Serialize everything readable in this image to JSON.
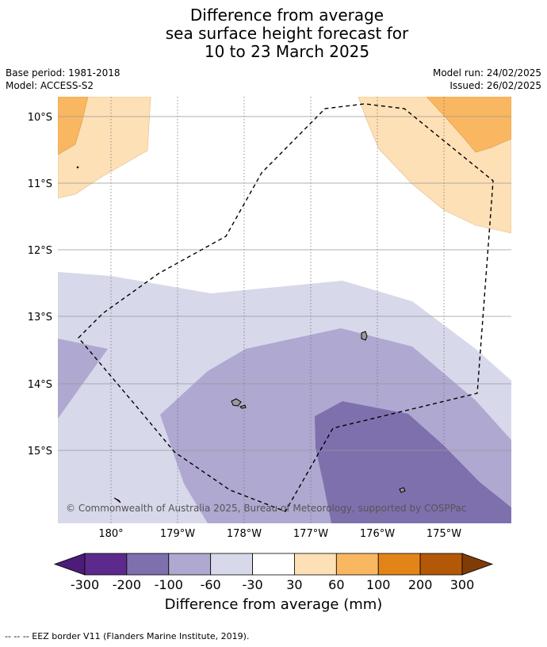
{
  "title": {
    "line1": "Difference from average",
    "line2": "sea surface height forecast for",
    "line3": "10 to 23 March 2025"
  },
  "meta": {
    "base_period": "Base period: 1981-2018",
    "model": "Model: ACCESS-S2",
    "model_run": "Model run: 24/02/2025",
    "issued": "Issued: 26/02/2025"
  },
  "axes": {
    "lat_ticks": [
      "10°S",
      "11°S",
      "12°S",
      "13°S",
      "14°S",
      "15°S"
    ],
    "lon_ticks": [
      "180°",
      "179°W",
      "178°W",
      "177°W",
      "176°W",
      "175°W"
    ]
  },
  "copyright": "© Commonwealth of Australia 2025, Bureau of Meteorology, supported by COSPPac",
  "colorbar": {
    "title": "Difference from average (mm)",
    "labels": [
      "-300",
      "-200",
      "-100",
      "-60",
      "-30",
      "30",
      "60",
      "100",
      "200",
      "300"
    ],
    "colors": [
      "#4d1b7a",
      "#5c2a8c",
      "#7e70ad",
      "#afa8d0",
      "#d7d8ea",
      "#ffffff",
      "#fde0b6",
      "#fab761",
      "#e28418",
      "#b35806",
      "#7f3b08"
    ]
  },
  "legend_note": "--  --  -- EEZ border V11 (Flanders Marine Institute, 2019).",
  "map_colors": {
    "ocean_neutral": "#ffffff",
    "minus_30_60": "#d7d8ea",
    "minus_60_100": "#afa8d0",
    "minus_100_200": "#7e70ad",
    "plus_30_60": "#fde0b6",
    "plus_60_100": "#fab761"
  }
}
